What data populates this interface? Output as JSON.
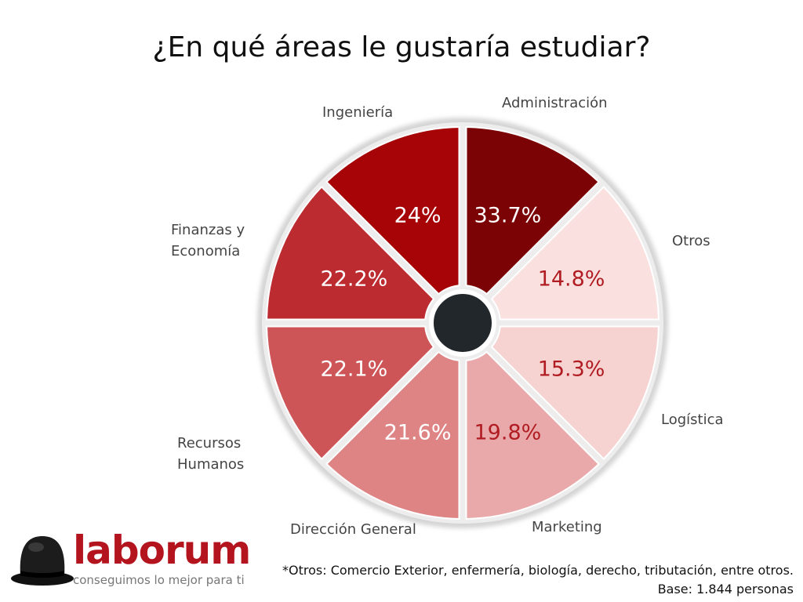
{
  "chart_data": {
    "type": "pie",
    "title": "¿En qué áreas le gustaría estudiar?",
    "unit": "%",
    "segments": [
      {
        "label_lines": [
          "Administración"
        ],
        "value": 33.7,
        "value_label": "33.7%",
        "color": "#7b0205",
        "text_color": "#ffffff"
      },
      {
        "label_lines": [
          "Otros"
        ],
        "value": 14.8,
        "value_label": "14.8%",
        "color": "#fae1e0",
        "text_color": "#b01c22"
      },
      {
        "label_lines": [
          "Logística"
        ],
        "value": 15.3,
        "value_label": "15.3%",
        "color": "#f6d2d1",
        "text_color": "#b01c22"
      },
      {
        "label_lines": [
          "Marketing"
        ],
        "value": 19.8,
        "value_label": "19.8%",
        "color": "#e9a8a9",
        "text_color": "#b01c22"
      },
      {
        "label_lines": [
          "Dirección General"
        ],
        "value": 21.6,
        "value_label": "21.6%",
        "color": "#de8485",
        "text_color": "#ffffff"
      },
      {
        "label_lines": [
          "Recursos",
          "Humanos"
        ],
        "value": 22.1,
        "value_label": "22.1%",
        "color": "#cd5557",
        "text_color": "#ffffff"
      },
      {
        "label_lines": [
          "Finanzas y",
          "Economía"
        ],
        "value": 22.2,
        "value_label": "22.2%",
        "color": "#bc2b30",
        "text_color": "#ffffff"
      },
      {
        "label_lines": [
          "Ingeniería"
        ],
        "value": 24,
        "value_label": "24%",
        "color": "#a60407",
        "text_color": "#ffffff"
      }
    ],
    "legend": "none"
  },
  "footnote": {
    "line1": "*Otros: Comercio Exterior, enfermería, biología, derecho, tributación, entre otros.",
    "line2": "Base: 1.844 personas"
  },
  "brand": {
    "name": "laborum",
    "tagline": "conseguimos lo mejor para ti",
    "color": "#b4141e",
    "icon": "bowler-hat-icon"
  }
}
